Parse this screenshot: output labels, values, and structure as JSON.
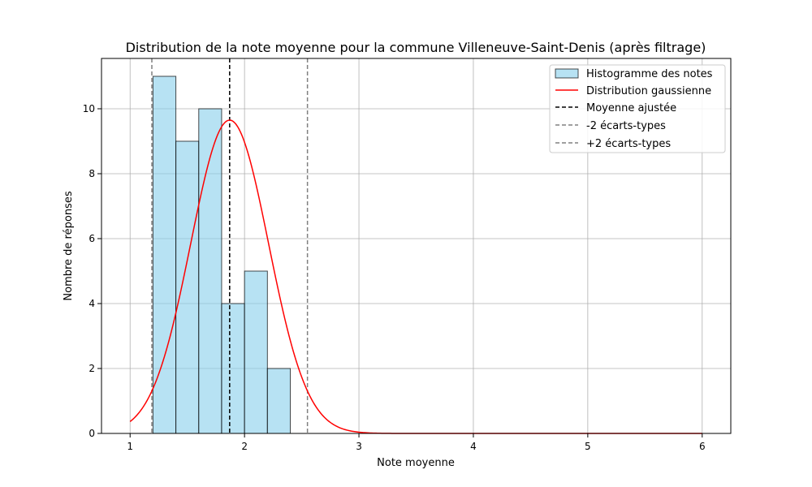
{
  "chart_data": {
    "type": "bar",
    "title": "Distribution de la note moyenne pour la commune Villeneuve-Saint-Denis (après filtrage)",
    "xlabel": "Note moyenne",
    "ylabel": "Nombre de réponses",
    "xlim": [
      0.75,
      6.25
    ],
    "ylim": [
      0,
      11.55
    ],
    "xticks": [
      1,
      2,
      3,
      4,
      5,
      6
    ],
    "yticks": [
      0,
      2,
      4,
      6,
      8,
      10
    ],
    "grid": true,
    "legend_position": "top-right",
    "histogram": {
      "name": "Histogramme des notes",
      "color": "#87ceeb",
      "edge_color": "#000000",
      "bins": [
        {
          "x0": 1.2,
          "x1": 1.4,
          "count": 11
        },
        {
          "x0": 1.4,
          "x1": 1.6,
          "count": 9
        },
        {
          "x0": 1.6,
          "x1": 1.8,
          "count": 10
        },
        {
          "x0": 1.8,
          "x1": 2.0,
          "count": 4
        },
        {
          "x0": 2.0,
          "x1": 2.2,
          "count": 5
        },
        {
          "x0": 2.2,
          "x1": 2.4,
          "count": 2
        }
      ]
    },
    "gaussian": {
      "name": "Distribution gaussienne",
      "color": "#ff0000",
      "mean": 1.87,
      "std": 0.34,
      "peak": 9.65,
      "x_range": [
        1,
        6
      ]
    },
    "mean_line": {
      "name": "Moyenne ajustée",
      "x": 1.87,
      "color": "#000000"
    },
    "minus_2sd_line": {
      "name": "-2 écarts-types",
      "x": 1.19,
      "color": "#808080"
    },
    "plus_2sd_line": {
      "name": "+2 écarts-types",
      "x": 2.55,
      "color": "#808080"
    }
  }
}
